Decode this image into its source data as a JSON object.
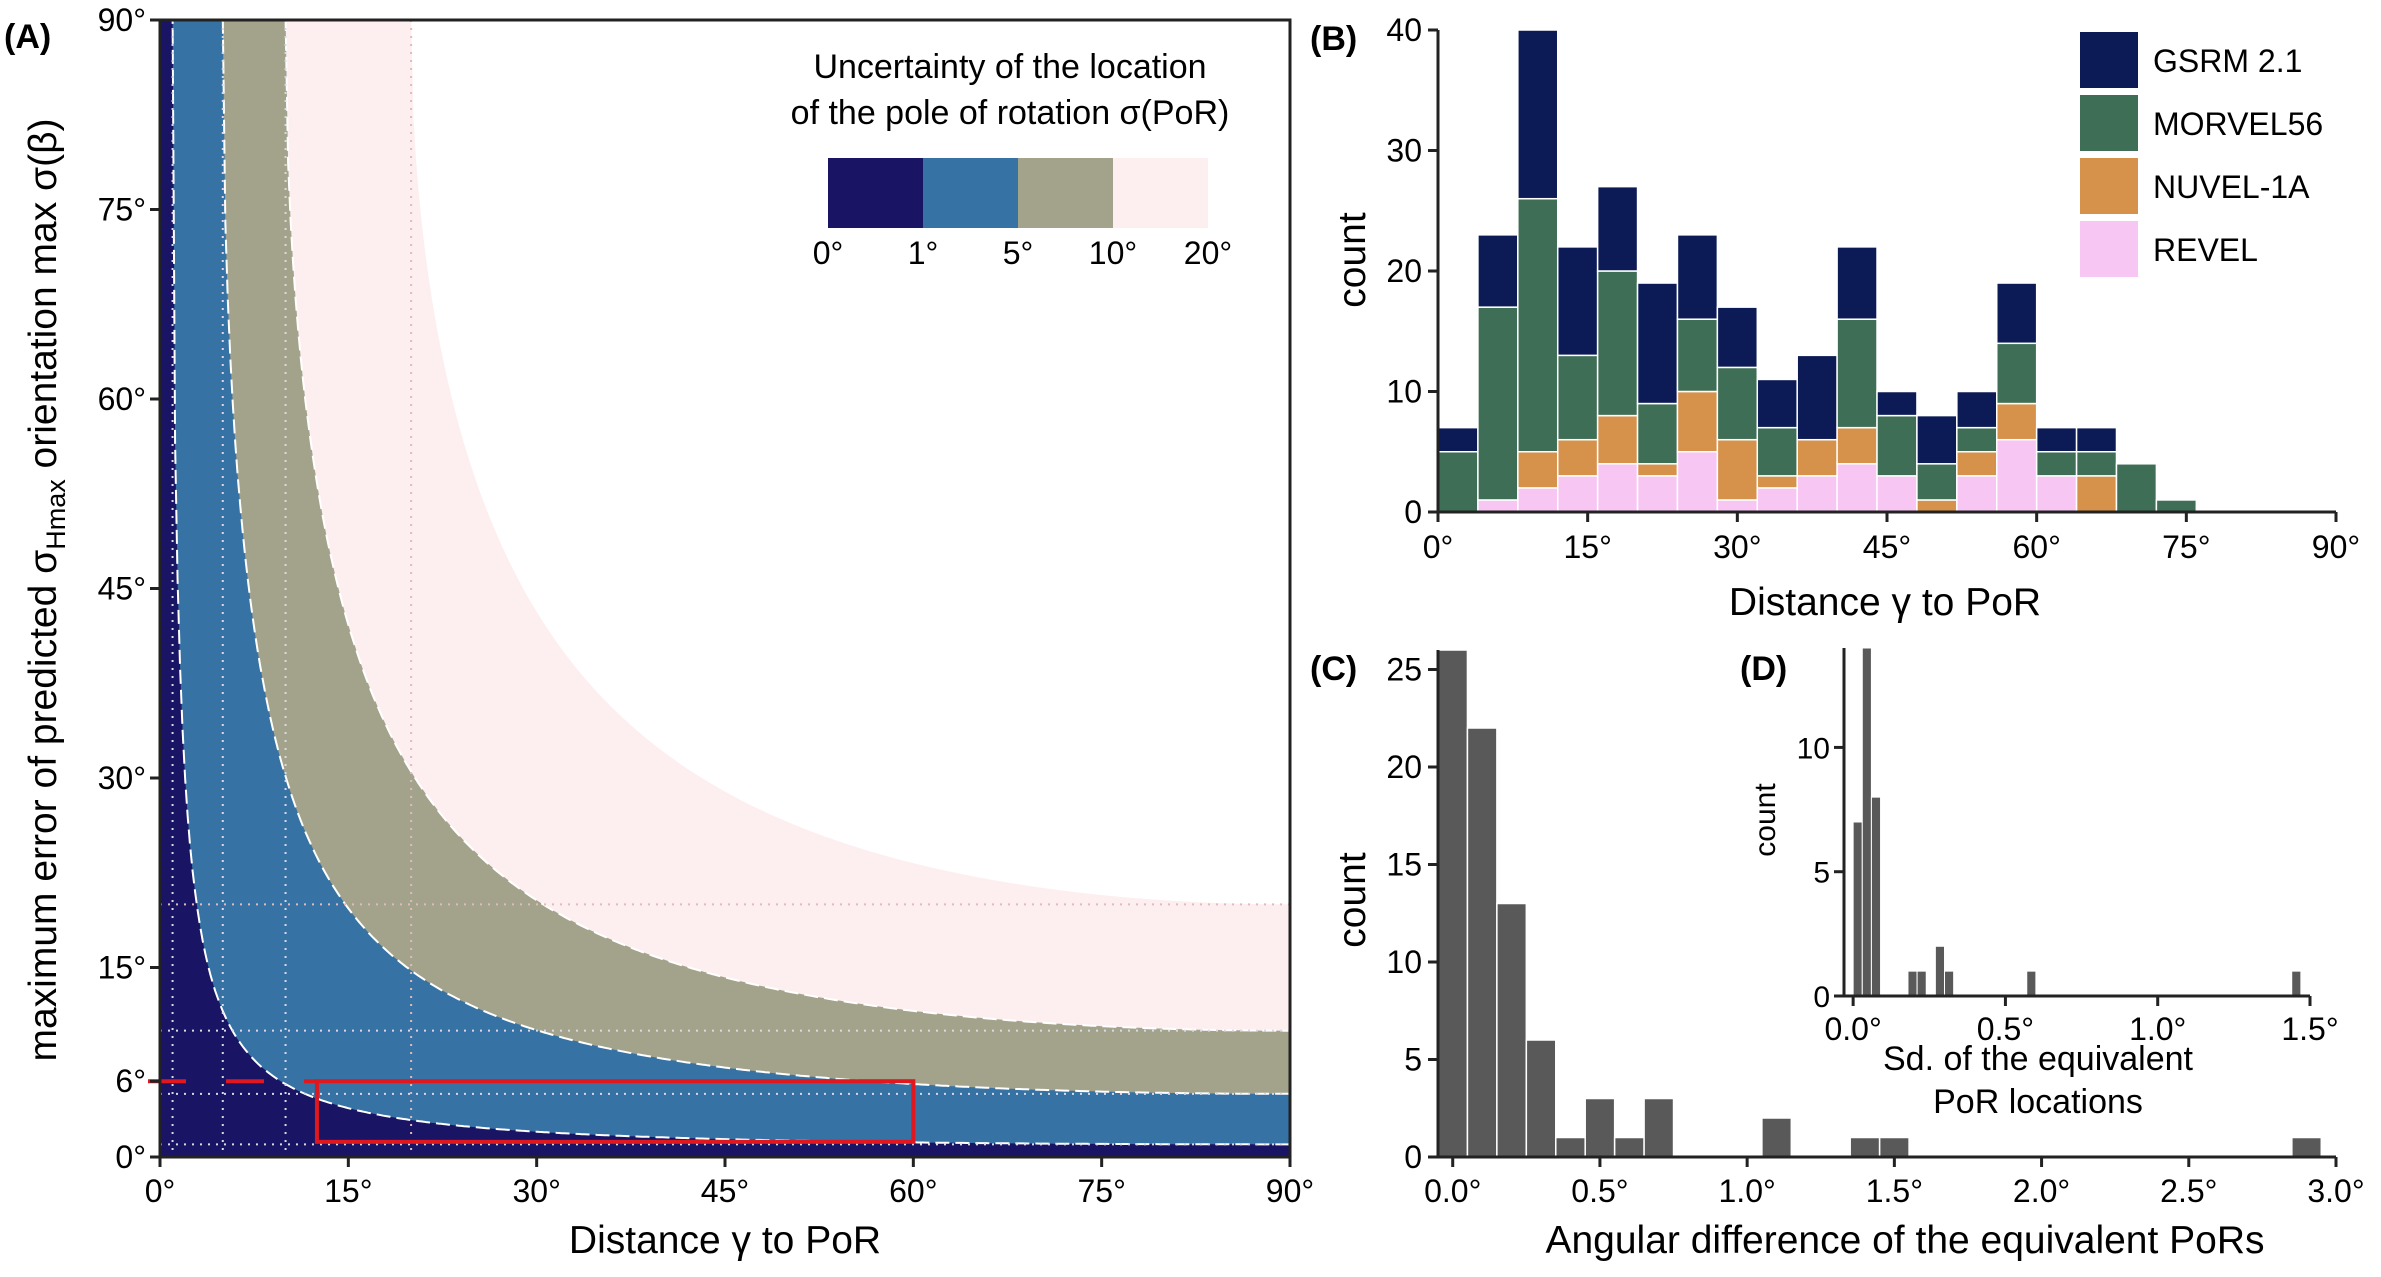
{
  "chart_data": [
    {
      "panel": "(A)",
      "type": "area",
      "xlabel": "Distance γ to PoR",
      "ylabel_main": "maximum error of predicted σ",
      "ylabel_sub": "Hmax",
      "ylabel_end": " orientation max σ(β)",
      "xlim": [
        0,
        90
      ],
      "ylim": [
        0,
        90
      ],
      "xticks": [
        0,
        15,
        30,
        45,
        60,
        75,
        90
      ],
      "xtick_labels": [
        "0°",
        "15°",
        "30°",
        "45°",
        "60°",
        "75°",
        "90°"
      ],
      "yticks": [
        0,
        6,
        15,
        30,
        45,
        60,
        75,
        90
      ],
      "ytick_labels": [
        "0°",
        "6°",
        "15°",
        "30°",
        "45°",
        "60°",
        "75°",
        "90°"
      ],
      "legend_title_line1": "Uncertainty of the location",
      "legend_title_line2": "of the pole of rotation σ(PoR)",
      "legend_position": "top-right",
      "legend_labels": [
        "0°",
        "1°",
        "5°",
        "10°",
        "20°"
      ],
      "band_colors": [
        "#1a1464",
        "#3672a4",
        "#a3a38c",
        "#fdeff0"
      ],
      "sigma_por_levels": [
        1,
        5,
        10,
        20
      ],
      "reference_box": {
        "x": [
          12.5,
          60
        ],
        "y": [
          1.2,
          6
        ],
        "color": "#e0171f"
      },
      "reference_y": 6
    },
    {
      "panel": "(B)",
      "type": "bar",
      "stacked": true,
      "xlabel": "Distance γ to PoR",
      "ylabel": "count",
      "xlim": [
        0,
        90
      ],
      "ylim": [
        0,
        40
      ],
      "bin_width": 4,
      "bin_starts": [
        0,
        4,
        8,
        12,
        16,
        20,
        24,
        28,
        32,
        36,
        40,
        44,
        48,
        52,
        56,
        60,
        64,
        68,
        72,
        76,
        80,
        84,
        88
      ],
      "xticks": [
        0,
        15,
        30,
        45,
        60,
        75,
        90
      ],
      "xtick_labels": [
        "0°",
        "15°",
        "30°",
        "45°",
        "60°",
        "75°",
        "90°"
      ],
      "yticks": [
        0,
        10,
        20,
        30,
        40
      ],
      "ytick_labels": [
        "0",
        "10",
        "20",
        "30",
        "40"
      ],
      "legend_position": "top-right",
      "series": [
        {
          "name": "REVEL",
          "color": "#f7c6f3",
          "values": [
            0,
            1,
            2,
            3,
            4,
            3,
            5,
            1,
            2,
            3,
            4,
            3,
            0,
            3,
            6,
            3,
            0,
            0,
            0,
            0,
            0,
            0,
            0
          ]
        },
        {
          "name": "NUVEL-1A",
          "color": "#d6914b",
          "values": [
            0,
            0,
            3,
            3,
            4,
            1,
            5,
            5,
            1,
            3,
            3,
            0,
            1,
            2,
            3,
            0,
            3,
            0,
            0,
            0,
            0,
            0,
            0
          ]
        },
        {
          "name": "MORVEL56",
          "color": "#3e6e55",
          "values": [
            5,
            16,
            21,
            7,
            12,
            5,
            6,
            6,
            4,
            0,
            9,
            5,
            3,
            2,
            5,
            2,
            2,
            4,
            1,
            0,
            0,
            0,
            0
          ]
        },
        {
          "name": "GSRM 2.1",
          "color": "#0c1b56",
          "values": [
            2,
            6,
            14,
            9,
            7,
            10,
            7,
            5,
            4,
            7,
            6,
            2,
            4,
            3,
            5,
            2,
            2,
            0,
            0,
            0,
            0,
            0,
            0
          ]
        }
      ],
      "legend_order": [
        "GSRM 2.1",
        "MORVEL56",
        "NUVEL-1A",
        "REVEL"
      ]
    },
    {
      "panel": "(C)",
      "type": "bar",
      "xlabel": "Angular difference of the equivalent PoRs",
      "ylabel": "count",
      "xlim": [
        -0.05,
        3.0
      ],
      "ylim": [
        0,
        26
      ],
      "bin_width": 0.1,
      "bin_starts": [
        -0.05,
        0.05,
        0.15,
        0.25,
        0.35,
        0.45,
        0.55,
        0.65,
        0.75,
        0.85,
        0.95,
        1.05,
        1.15,
        1.25,
        1.35,
        1.45,
        1.55,
        1.65,
        1.75,
        1.85,
        1.95,
        2.05,
        2.15,
        2.25,
        2.35,
        2.45,
        2.55,
        2.65,
        2.75,
        2.85,
        2.95
      ],
      "values": [
        26,
        22,
        13,
        6,
        1,
        3,
        1,
        3,
        0,
        0,
        0,
        2,
        0,
        0,
        1,
        1,
        0,
        0,
        0,
        0,
        0,
        0,
        0,
        0,
        0,
        0,
        0,
        0,
        0,
        1,
        0
      ],
      "xticks": [
        0,
        0.5,
        1.0,
        1.5,
        2.0,
        2.5,
        3.0
      ],
      "xtick_labels": [
        "0.0°",
        "0.5°",
        "1.0°",
        "1.5°",
        "2.0°",
        "2.5°",
        "3.0°"
      ],
      "yticks": [
        0,
        5,
        10,
        15,
        20,
        25
      ],
      "ytick_labels": [
        "0",
        "5",
        "10",
        "15",
        "20",
        "25"
      ],
      "bar_color": "#595959"
    },
    {
      "panel": "(D)",
      "type": "bar",
      "xlabel_line1": "Sd. of the equivalent",
      "xlabel_line2": "PoR locations",
      "ylabel": "count",
      "xlim": [
        -0.03,
        1.5
      ],
      "ylim": [
        0,
        14
      ],
      "bin_width": 0.03,
      "bin_starts": [
        0.0,
        0.03,
        0.06,
        0.18,
        0.21,
        0.24,
        0.27,
        0.3,
        0.39,
        1.44
      ],
      "values": [
        7,
        14,
        8,
        1,
        1,
        0,
        2,
        1,
        0,
        1
      ],
      "extra_bars": [
        {
          "x": 0.57,
          "value": 1
        }
      ],
      "xticks": [
        0,
        0.5,
        1.0,
        1.5
      ],
      "xtick_labels": [
        "0.0°",
        "0.5°",
        "1.0°",
        "1.5°"
      ],
      "yticks": [
        0,
        5,
        10
      ],
      "ytick_labels": [
        "0",
        "5",
        "10"
      ],
      "bar_color": "#595959"
    }
  ]
}
